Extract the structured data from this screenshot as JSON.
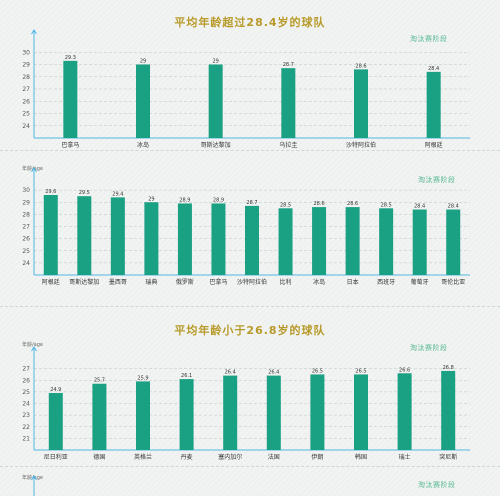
{
  "sections": {
    "s1": {
      "title": "平均年龄超过28.4岁的球队",
      "stage": "淘汰赛阶段"
    },
    "s2": {
      "unit": "年龄/age",
      "stage": "淘汰赛阶段"
    },
    "s3": {
      "title": "平均年龄小于26.8岁的球队",
      "stage": "淘汰赛阶段",
      "unit": "年龄/age"
    },
    "s4": {
      "unit": "年龄/age",
      "stage": "淘汰赛阶段"
    }
  },
  "colors": {
    "bar": "#1aa083",
    "axis": "#52b6e6",
    "title": "#b89a2a",
    "stage": "#58b894",
    "grid": "#b9c7c2"
  },
  "chart_data": [
    {
      "type": "bar",
      "title": "平均年龄超过28.4岁的球队",
      "ylabel": "",
      "ylim": [
        23,
        31
      ],
      "yticks": [
        24,
        25,
        26,
        27,
        28,
        29,
        30
      ],
      "categories": [
        "巴拿马",
        "冰岛",
        "哥斯达黎加",
        "乌拉圭",
        "沙特阿拉伯",
        "阿根廷"
      ],
      "values": [
        29.3,
        29,
        29,
        28.7,
        28.6,
        28.4
      ],
      "labels": [
        "29.3",
        "29",
        "29",
        "28.7",
        "28.6",
        "28.4"
      ]
    },
    {
      "type": "bar",
      "title": "",
      "ylabel": "年龄/age",
      "ylim": [
        23,
        31
      ],
      "yticks": [
        24,
        25,
        26,
        27,
        28,
        29,
        30
      ],
      "categories": [
        "阿根廷",
        "哥斯达黎加",
        "墨西哥",
        "瑞典",
        "俄罗斯",
        "巴拿马",
        "沙特阿拉伯",
        "比利",
        "冰岛",
        "日本",
        "西班牙",
        "葡萄牙",
        "哥伦比亚"
      ],
      "values": [
        29.6,
        29.5,
        29.4,
        29,
        28.9,
        28.9,
        28.7,
        28.5,
        28.6,
        28.6,
        28.5,
        28.4,
        28.4
      ],
      "labels": [
        "29.6",
        "29.5",
        "29.4",
        "29",
        "28.9",
        "28.9",
        "28.7",
        "28.5",
        "28.6",
        "28.6",
        "28.5",
        "28.4",
        "28.4"
      ]
    },
    {
      "type": "bar",
      "title": "平均年龄小于26.8岁的球队",
      "ylabel": "年龄/age",
      "ylim": [
        20,
        28
      ],
      "yticks": [
        21,
        22,
        23,
        24,
        25,
        26,
        27
      ],
      "categories": [
        "尼日利亚",
        "德国",
        "英格兰",
        "丹麦",
        "塞内加尔",
        "法国",
        "伊朗",
        "韩国",
        "瑞士",
        "突尼斯"
      ],
      "values": [
        24.9,
        25.7,
        25.9,
        26.1,
        26.4,
        26.4,
        26.5,
        26.5,
        26.6,
        26.8
      ],
      "labels": [
        "24.9",
        "25.7",
        "25.9",
        "26.1",
        "26.4",
        "26.4",
        "26.5",
        "26.5",
        "26.6",
        "26.8"
      ]
    }
  ]
}
